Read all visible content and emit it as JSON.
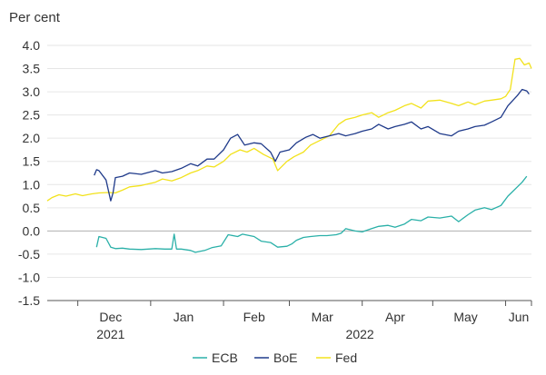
{
  "chart_data": {
    "type": "line",
    "ylabel": "Per cent",
    "ylim": [
      -1.5,
      4.0
    ],
    "yticks": [
      4.0,
      3.5,
      3.0,
      2.5,
      2.0,
      1.5,
      1.0,
      0.5,
      0.0,
      -0.5,
      -1.0,
      -1.5
    ],
    "yticklabels": [
      "4.0",
      "3.5",
      "3.0",
      "2.5",
      "2.0",
      "1.5",
      "1.0",
      "0.5",
      "0.0",
      "-0.5",
      "-1.0",
      "-1.5"
    ],
    "xlim": [
      "2021-11-18",
      "2022-06-12"
    ],
    "month_ticks": [
      "2021-12-01",
      "2022-01-01",
      "2022-02-01",
      "2022-03-01",
      "2022-04-01",
      "2022-05-01",
      "2022-06-01",
      "2022-07-01"
    ],
    "month_labels": [
      {
        "date": "2021-12-15",
        "label": "Dec"
      },
      {
        "date": "2022-01-15",
        "label": "Jan"
      },
      {
        "date": "2022-02-14",
        "label": "Feb"
      },
      {
        "date": "2022-03-15",
        "label": "Mar"
      },
      {
        "date": "2022-04-15",
        "label": "Apr"
      },
      {
        "date": "2022-05-15",
        "label": "May"
      },
      {
        "date": "2022-06-15",
        "label": "Jun"
      }
    ],
    "year_labels": [
      {
        "date": "2021-12-15",
        "label": "2021"
      },
      {
        "date": "2022-03-31",
        "label": "2022"
      }
    ],
    "grid": true,
    "legend_position": "bottom-center",
    "series": [
      {
        "name": "ECB",
        "color": "#2ab0a8",
        "points": [
          [
            "2021-12-09",
            -0.35
          ],
          [
            "2021-12-10",
            -0.12
          ],
          [
            "2021-12-13",
            -0.16
          ],
          [
            "2021-12-15",
            -0.35
          ],
          [
            "2021-12-17",
            -0.38
          ],
          [
            "2021-12-20",
            -0.37
          ],
          [
            "2021-12-23",
            -0.39
          ],
          [
            "2021-12-28",
            -0.4
          ],
          [
            "2022-01-03",
            -0.38
          ],
          [
            "2022-01-07",
            -0.39
          ],
          [
            "2022-01-10",
            -0.39
          ],
          [
            "2022-01-11",
            -0.07
          ],
          [
            "2022-01-12",
            -0.39
          ],
          [
            "2022-01-14",
            -0.39
          ],
          [
            "2022-01-18",
            -0.42
          ],
          [
            "2022-01-20",
            -0.46
          ],
          [
            "2022-01-24",
            -0.42
          ],
          [
            "2022-01-27",
            -0.36
          ],
          [
            "2022-01-31",
            -0.32
          ],
          [
            "2022-02-03",
            -0.08
          ],
          [
            "2022-02-07",
            -0.12
          ],
          [
            "2022-02-09",
            -0.07
          ],
          [
            "2022-02-14",
            -0.12
          ],
          [
            "2022-02-17",
            -0.22
          ],
          [
            "2022-02-21",
            -0.25
          ],
          [
            "2022-02-24",
            -0.35
          ],
          [
            "2022-02-28",
            -0.33
          ],
          [
            "2022-03-02",
            -0.28
          ],
          [
            "2022-03-04",
            -0.2
          ],
          [
            "2022-03-07",
            -0.14
          ],
          [
            "2022-03-10",
            -0.12
          ],
          [
            "2022-03-14",
            -0.1
          ],
          [
            "2022-03-17",
            -0.1
          ],
          [
            "2022-03-21",
            -0.08
          ],
          [
            "2022-03-23",
            -0.05
          ],
          [
            "2022-03-25",
            0.05
          ],
          [
            "2022-03-29",
            0.0
          ],
          [
            "2022-04-01",
            -0.02
          ],
          [
            "2022-04-05",
            0.05
          ],
          [
            "2022-04-08",
            0.1
          ],
          [
            "2022-04-12",
            0.12
          ],
          [
            "2022-04-15",
            0.08
          ],
          [
            "2022-04-19",
            0.15
          ],
          [
            "2022-04-22",
            0.25
          ],
          [
            "2022-04-26",
            0.22
          ],
          [
            "2022-04-29",
            0.3
          ],
          [
            "2022-05-04",
            0.28
          ],
          [
            "2022-05-09",
            0.32
          ],
          [
            "2022-05-12",
            0.2
          ],
          [
            "2022-05-16",
            0.35
          ],
          [
            "2022-05-19",
            0.45
          ],
          [
            "2022-05-23",
            0.5
          ],
          [
            "2022-05-26",
            0.46
          ],
          [
            "2022-05-30",
            0.55
          ],
          [
            "2022-06-02",
            0.75
          ],
          [
            "2022-06-06",
            0.95
          ],
          [
            "2022-06-08",
            1.05
          ],
          [
            "2022-06-10",
            1.18
          ]
        ]
      },
      {
        "name": "BoE",
        "color": "#1f3a8a",
        "points": [
          [
            "2021-12-08",
            1.2
          ],
          [
            "2021-12-09",
            1.32
          ],
          [
            "2021-12-10",
            1.3
          ],
          [
            "2021-12-13",
            1.1
          ],
          [
            "2021-12-15",
            0.65
          ],
          [
            "2021-12-16",
            0.82
          ],
          [
            "2021-12-17",
            1.15
          ],
          [
            "2021-12-20",
            1.18
          ],
          [
            "2021-12-23",
            1.25
          ],
          [
            "2021-12-28",
            1.22
          ],
          [
            "2022-01-03",
            1.3
          ],
          [
            "2022-01-06",
            1.25
          ],
          [
            "2022-01-10",
            1.28
          ],
          [
            "2022-01-14",
            1.35
          ],
          [
            "2022-01-18",
            1.45
          ],
          [
            "2022-01-21",
            1.4
          ],
          [
            "2022-01-25",
            1.55
          ],
          [
            "2022-01-28",
            1.55
          ],
          [
            "2022-02-01",
            1.75
          ],
          [
            "2022-02-04",
            2.0
          ],
          [
            "2022-02-07",
            2.08
          ],
          [
            "2022-02-10",
            1.85
          ],
          [
            "2022-02-14",
            1.9
          ],
          [
            "2022-02-17",
            1.88
          ],
          [
            "2022-02-21",
            1.7
          ],
          [
            "2022-02-23",
            1.5
          ],
          [
            "2022-02-25",
            1.7
          ],
          [
            "2022-03-01",
            1.75
          ],
          [
            "2022-03-04",
            1.9
          ],
          [
            "2022-03-08",
            2.02
          ],
          [
            "2022-03-11",
            2.08
          ],
          [
            "2022-03-14",
            2.0
          ],
          [
            "2022-03-18",
            2.05
          ],
          [
            "2022-03-22",
            2.1
          ],
          [
            "2022-03-25",
            2.05
          ],
          [
            "2022-03-29",
            2.1
          ],
          [
            "2022-04-01",
            2.15
          ],
          [
            "2022-04-05",
            2.2
          ],
          [
            "2022-04-08",
            2.3
          ],
          [
            "2022-04-12",
            2.2
          ],
          [
            "2022-04-15",
            2.25
          ],
          [
            "2022-04-19",
            2.3
          ],
          [
            "2022-04-22",
            2.35
          ],
          [
            "2022-04-26",
            2.2
          ],
          [
            "2022-04-29",
            2.25
          ],
          [
            "2022-05-04",
            2.1
          ],
          [
            "2022-05-09",
            2.05
          ],
          [
            "2022-05-12",
            2.15
          ],
          [
            "2022-05-16",
            2.2
          ],
          [
            "2022-05-19",
            2.25
          ],
          [
            "2022-05-23",
            2.28
          ],
          [
            "2022-05-26",
            2.35
          ],
          [
            "2022-05-30",
            2.45
          ],
          [
            "2022-06-02",
            2.7
          ],
          [
            "2022-06-06",
            2.92
          ],
          [
            "2022-06-08",
            3.05
          ],
          [
            "2022-06-10",
            3.02
          ],
          [
            "2022-06-11",
            2.95
          ]
        ]
      },
      {
        "name": "Fed",
        "color": "#f2e21c",
        "points": [
          [
            "2021-11-18",
            0.65
          ],
          [
            "2021-11-20",
            0.72
          ],
          [
            "2021-11-23",
            0.78
          ],
          [
            "2021-11-26",
            0.75
          ],
          [
            "2021-11-30",
            0.8
          ],
          [
            "2021-12-03",
            0.76
          ],
          [
            "2021-12-07",
            0.8
          ],
          [
            "2021-12-10",
            0.82
          ],
          [
            "2021-12-14",
            0.83
          ],
          [
            "2021-12-17",
            0.82
          ],
          [
            "2021-12-20",
            0.88
          ],
          [
            "2021-12-23",
            0.95
          ],
          [
            "2021-12-28",
            0.98
          ],
          [
            "2022-01-03",
            1.05
          ],
          [
            "2022-01-06",
            1.12
          ],
          [
            "2022-01-10",
            1.08
          ],
          [
            "2022-01-14",
            1.15
          ],
          [
            "2022-01-18",
            1.25
          ],
          [
            "2022-01-21",
            1.3
          ],
          [
            "2022-01-25",
            1.4
          ],
          [
            "2022-01-28",
            1.38
          ],
          [
            "2022-02-01",
            1.5
          ],
          [
            "2022-02-04",
            1.65
          ],
          [
            "2022-02-08",
            1.75
          ],
          [
            "2022-02-11",
            1.7
          ],
          [
            "2022-02-14",
            1.78
          ],
          [
            "2022-02-18",
            1.65
          ],
          [
            "2022-02-22",
            1.55
          ],
          [
            "2022-02-24",
            1.3
          ],
          [
            "2022-02-28",
            1.5
          ],
          [
            "2022-03-03",
            1.6
          ],
          [
            "2022-03-07",
            1.7
          ],
          [
            "2022-03-10",
            1.85
          ],
          [
            "2022-03-14",
            1.95
          ],
          [
            "2022-03-18",
            2.05
          ],
          [
            "2022-03-22",
            2.3
          ],
          [
            "2022-03-25",
            2.4
          ],
          [
            "2022-03-29",
            2.45
          ],
          [
            "2022-04-01",
            2.5
          ],
          [
            "2022-04-05",
            2.55
          ],
          [
            "2022-04-08",
            2.45
          ],
          [
            "2022-04-12",
            2.55
          ],
          [
            "2022-04-15",
            2.6
          ],
          [
            "2022-04-19",
            2.7
          ],
          [
            "2022-04-22",
            2.75
          ],
          [
            "2022-04-26",
            2.65
          ],
          [
            "2022-04-29",
            2.8
          ],
          [
            "2022-05-04",
            2.82
          ],
          [
            "2022-05-09",
            2.75
          ],
          [
            "2022-05-12",
            2.7
          ],
          [
            "2022-05-16",
            2.78
          ],
          [
            "2022-05-19",
            2.72
          ],
          [
            "2022-05-23",
            2.8
          ],
          [
            "2022-05-26",
            2.82
          ],
          [
            "2022-05-30",
            2.85
          ],
          [
            "2022-06-01",
            2.9
          ],
          [
            "2022-06-03",
            3.05
          ],
          [
            "2022-06-05",
            3.7
          ],
          [
            "2022-06-07",
            3.72
          ],
          [
            "2022-06-09",
            3.58
          ],
          [
            "2022-06-11",
            3.62
          ],
          [
            "2022-06-12",
            3.5
          ]
        ]
      }
    ]
  }
}
